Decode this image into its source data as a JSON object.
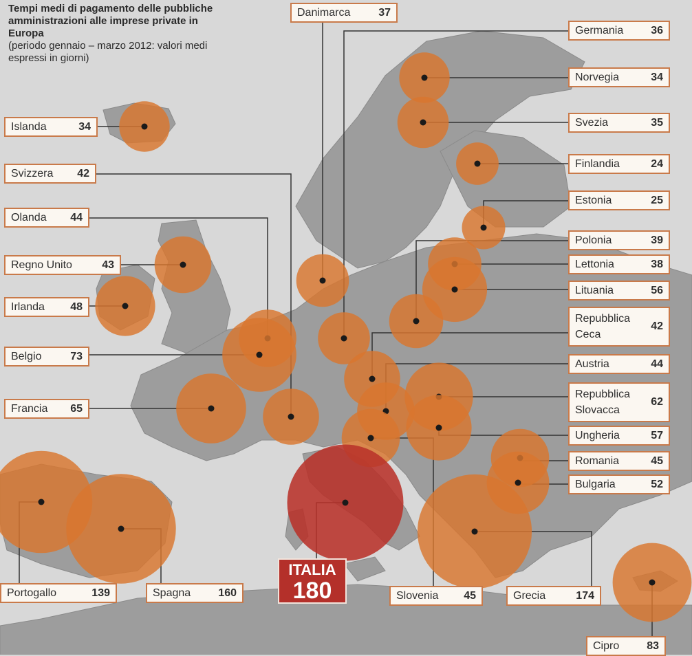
{
  "title": "Tempi medi di pagamento delle pubbliche amministrazioni alle imprese private in Europa",
  "subtitle": "(periodo gennaio – marzo 2012: valori medi espressi in giorni)",
  "colors": {
    "bubble": "#d9762e",
    "bubble_italia": "#b8322a",
    "map_land": "#9d9d9d",
    "map_sea": "#d8d8d8",
    "label_border": "#c97a4a"
  },
  "countries": [
    {
      "id": "islanda",
      "name": "Islanda",
      "value": "34",
      "days": 34
    },
    {
      "id": "svizzera",
      "name": "Svizzera",
      "value": "42",
      "days": 42
    },
    {
      "id": "olanda",
      "name": "Olanda",
      "value": "44",
      "days": 44
    },
    {
      "id": "regno-unito",
      "name": "Regno Unito",
      "value": "43",
      "days": 43
    },
    {
      "id": "irlanda",
      "name": "Irlanda",
      "value": "48",
      "days": 48
    },
    {
      "id": "belgio",
      "name": "Belgio",
      "value": "73",
      "days": 73
    },
    {
      "id": "francia",
      "name": "Francia",
      "value": "65",
      "days": 65
    },
    {
      "id": "portogallo",
      "name": "Portogallo",
      "value": "139",
      "days": 139
    },
    {
      "id": "spagna",
      "name": "Spagna",
      "value": "160",
      "days": 160
    },
    {
      "id": "danimarca",
      "name": "Danimarca",
      "value": "37",
      "days": 37
    },
    {
      "id": "germania",
      "name": "Germania",
      "value": "36",
      "days": 36
    },
    {
      "id": "norvegia",
      "name": "Norvegia",
      "value": "34",
      "days": 34
    },
    {
      "id": "svezia",
      "name": "Svezia",
      "value": "35",
      "days": 35
    },
    {
      "id": "finlandia",
      "name": "Finlandia",
      "value": "24",
      "days": 24
    },
    {
      "id": "estonia",
      "name": "Estonia",
      "value": "25",
      "days": 25
    },
    {
      "id": "polonia",
      "name": "Polonia",
      "value": "39",
      "days": 39
    },
    {
      "id": "lettonia",
      "name": "Lettonia",
      "value": "38",
      "days": 38
    },
    {
      "id": "lituania",
      "name": "Lituania",
      "value": "56",
      "days": 56
    },
    {
      "id": "repubblica-ceca",
      "name": "Repubblica Ceca",
      "value": "42",
      "days": 42
    },
    {
      "id": "austria",
      "name": "Austria",
      "value": "44",
      "days": 44
    },
    {
      "id": "repubblica-slovacca",
      "name": "Repubblica Slovacca",
      "value": "62",
      "days": 62
    },
    {
      "id": "ungheria",
      "name": "Ungheria",
      "value": "57",
      "days": 57
    },
    {
      "id": "romania",
      "name": "Romania",
      "value": "45",
      "days": 45
    },
    {
      "id": "bulgaria",
      "name": "Bulgaria",
      "value": "52",
      "days": 52
    },
    {
      "id": "slovenia",
      "name": "Slovenia",
      "value": "45",
      "days": 45
    },
    {
      "id": "grecia",
      "name": "Grecia",
      "value": "174",
      "days": 174
    },
    {
      "id": "cipro",
      "name": "Cipro",
      "value": "83",
      "days": 83
    },
    {
      "id": "italia",
      "name": "ITALIA",
      "value": "180",
      "days": 180
    }
  ]
}
